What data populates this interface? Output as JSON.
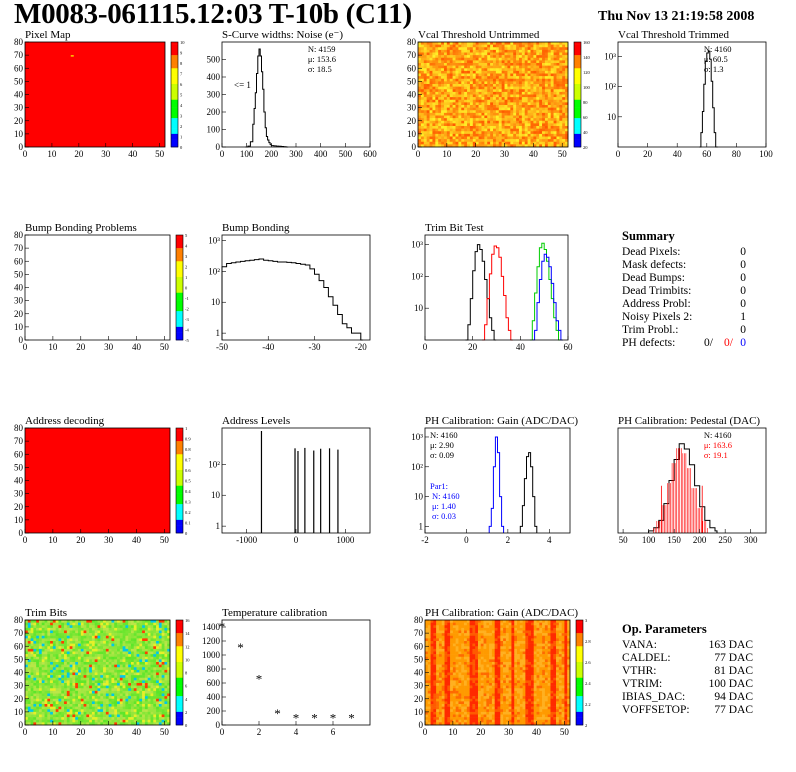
{
  "header": {
    "title": "M0083-061115.12:03 T-10b (C11)",
    "date": "Thu Nov 13 21:19:58 2008"
  },
  "colors": {
    "black": "#000000",
    "red": "#ff0000",
    "green": "#00cc00",
    "blue": "#0000ff",
    "map_red": "#ff0000"
  },
  "chart_data": [
    {
      "id": "pixel-map",
      "type": "heatmap",
      "title": "Pixel Map",
      "xlim": [
        0,
        52
      ],
      "ylim": [
        0,
        80
      ],
      "xticks": [
        "0",
        "10",
        "20",
        "30",
        "40",
        "50"
      ],
      "yticks": [
        "0",
        "10",
        "20",
        "30",
        "40",
        "50",
        "60",
        "70",
        "80"
      ],
      "fill": "uniform-red",
      "zlim": [
        0,
        10
      ],
      "zticks": [
        "10",
        "9",
        "8",
        "7",
        "6",
        "5",
        "4",
        "3",
        "2",
        "1",
        "0"
      ]
    },
    {
      "id": "scurve-widths",
      "type": "line",
      "title": "S-Curve widths: Noise (e⁻)",
      "xlim": [
        0,
        600
      ],
      "xticks": [
        "0",
        "100",
        "200",
        "300",
        "400",
        "500",
        "600"
      ],
      "ylim": [
        0,
        600
      ],
      "yticks": [
        "0",
        "100",
        "200",
        "300",
        "400",
        "500"
      ],
      "stats": [
        {
          "label": "N:",
          "value": "4159"
        },
        {
          "label": "μ:",
          "value": "153.6"
        },
        {
          "label": "σ:",
          "value": "18.5"
        }
      ],
      "annotation": "<= 1",
      "series": [
        {
          "color": "#000000",
          "x": [
            95,
            105,
            115,
            125,
            130,
            135,
            140,
            145,
            150,
            155,
            160,
            165,
            170,
            175,
            180,
            185,
            190,
            195,
            200,
            210,
            220,
            230,
            240,
            250,
            260
          ],
          "y": [
            0,
            5,
            30,
            130,
            220,
            310,
            420,
            520,
            560,
            520,
            430,
            330,
            200,
            110,
            60,
            40,
            25,
            15,
            8,
            6,
            5,
            4,
            3,
            2,
            0
          ]
        }
      ]
    },
    {
      "id": "vcal-untrimmed",
      "type": "heatmap",
      "title": "Vcal Threshold Untrimmed",
      "xlim": [
        0,
        52
      ],
      "ylim": [
        0,
        80
      ],
      "xticks": [
        "0",
        "10",
        "20",
        "30",
        "40",
        "50"
      ],
      "yticks": [
        "0",
        "10",
        "20",
        "30",
        "40",
        "50",
        "60",
        "70",
        "80"
      ],
      "fill": "noise-orange",
      "zlim": [
        0,
        160
      ],
      "zticks": [
        "160",
        "140",
        "120",
        "100",
        "80",
        "60",
        "40",
        "20"
      ]
    },
    {
      "id": "vcal-trimmed",
      "type": "line",
      "title": "Vcal Threshold Trimmed",
      "log_y": true,
      "xlim": [
        0,
        100
      ],
      "xticks": [
        "0",
        "20",
        "40",
        "60",
        "80",
        "100"
      ],
      "ylim": [
        1,
        3000
      ],
      "yticks": [
        {
          "v": 10,
          "t": "10"
        },
        {
          "v": 100,
          "t": "10²"
        },
        {
          "v": 1000,
          "t": "10³"
        }
      ],
      "stats": [
        {
          "label": "N:",
          "value": "4160"
        },
        {
          "label": "μ:",
          "value": "60.5"
        },
        {
          "label": "σ:",
          "value": "1.3"
        }
      ],
      "series": [
        {
          "color": "#000000",
          "x": [
            55,
            56,
            57,
            58,
            59,
            60,
            61,
            62,
            63,
            64,
            65,
            66
          ],
          "y": [
            1,
            3,
            15,
            120,
            700,
            1300,
            1500,
            800,
            150,
            20,
            3,
            1
          ]
        }
      ]
    },
    {
      "id": "bump-problems",
      "type": "heatmap",
      "title": "Bump Bonding Problems",
      "xlim": [
        0,
        52
      ],
      "ylim": [
        0,
        80
      ],
      "xticks": [
        "0",
        "10",
        "20",
        "30",
        "40",
        "50"
      ],
      "yticks": [
        "0",
        "10",
        "20",
        "30",
        "40",
        "50",
        "60",
        "70",
        "80"
      ],
      "fill": "empty",
      "zlim": [
        -5,
        5
      ],
      "zticks": [
        "5",
        "4",
        "3",
        "2",
        "1",
        "0",
        "-1",
        "-2",
        "-3",
        "-4",
        "-5"
      ]
    },
    {
      "id": "bump-bonding",
      "type": "line",
      "title": "Bump Bonding",
      "log_y": true,
      "xlim": [
        -50,
        -18
      ],
      "xticks": [
        "-50",
        "-40",
        "-30",
        "-20"
      ],
      "ylim": [
        0.6,
        1500
      ],
      "yticks": [
        {
          "v": 1,
          "t": "1"
        },
        {
          "v": 10,
          "t": "10"
        },
        {
          "v": 100,
          "t": "10²"
        },
        {
          "v": 1000,
          "t": "10³"
        }
      ],
      "series": [
        {
          "color": "#000000",
          "x": [
            -50,
            -49,
            -48,
            -47,
            -46,
            -45,
            -44,
            -43,
            -42,
            -41,
            -40,
            -39,
            -38,
            -37,
            -36,
            -35,
            -34,
            -33,
            -32,
            -31,
            -30,
            -29,
            -28,
            -27,
            -26,
            -25,
            -24,
            -23,
            -22,
            -21,
            -20
          ],
          "y": [
            140,
            180,
            190,
            200,
            210,
            220,
            230,
            240,
            250,
            230,
            220,
            210,
            200,
            200,
            195,
            190,
            180,
            170,
            160,
            120,
            80,
            50,
            30,
            15,
            8,
            4,
            2,
            1.5,
            1,
            1,
            0.6
          ]
        }
      ]
    },
    {
      "id": "trim-bit-test",
      "type": "line",
      "title": "Trim Bit Test",
      "log_y": true,
      "xlim": [
        0,
        60
      ],
      "xticks": [
        "0",
        "20",
        "40",
        "60"
      ],
      "ylim": [
        1,
        2000
      ],
      "yticks": [
        {
          "v": 10,
          "t": "10"
        },
        {
          "v": 100,
          "t": "10²"
        },
        {
          "v": 1000,
          "t": "10³"
        }
      ],
      "series": [
        {
          "color": "#000000",
          "x": [
            17,
            18,
            19,
            20,
            21,
            22,
            23,
            24,
            25,
            26,
            27,
            28,
            29
          ],
          "y": [
            1,
            3,
            20,
            150,
            600,
            1000,
            700,
            300,
            80,
            20,
            5,
            2,
            1
          ]
        },
        {
          "color": "#ff0000",
          "x": [
            24,
            25,
            26,
            27,
            28,
            29,
            30,
            31,
            32,
            33,
            34,
            35,
            36
          ],
          "y": [
            1,
            3,
            20,
            120,
            500,
            900,
            800,
            400,
            100,
            25,
            5,
            2,
            1
          ]
        },
        {
          "color": "#00cc00",
          "x": [
            44,
            45,
            46,
            47,
            48,
            49,
            50,
            51,
            52,
            53,
            54,
            55,
            56
          ],
          "y": [
            1,
            4,
            30,
            200,
            800,
            1100,
            700,
            300,
            80,
            20,
            5,
            2,
            1
          ]
        },
        {
          "color": "#0000ff",
          "x": [
            45,
            46,
            47,
            48,
            49,
            50,
            51,
            52,
            53,
            54,
            55,
            56,
            57
          ],
          "y": [
            1,
            2,
            15,
            80,
            300,
            500,
            400,
            200,
            60,
            15,
            4,
            2,
            1
          ]
        }
      ]
    },
    {
      "id": "address-decoding",
      "type": "heatmap",
      "title": "Address decoding",
      "xlim": [
        0,
        52
      ],
      "ylim": [
        0,
        80
      ],
      "xticks": [
        "0",
        "10",
        "20",
        "30",
        "40",
        "50"
      ],
      "yticks": [
        "0",
        "10",
        "20",
        "30",
        "40",
        "50",
        "60",
        "70",
        "80"
      ],
      "fill": "uniform-red",
      "zlim": [
        0,
        1
      ],
      "zticks": [
        "1",
        "0.9",
        "0.8",
        "0.7",
        "0.6",
        "0.5",
        "0.4",
        "0.3",
        "0.2",
        "0.1",
        "0"
      ]
    },
    {
      "id": "address-levels",
      "type": "bar",
      "title": "Address Levels",
      "log_y": true,
      "xlim": [
        -1500,
        1500
      ],
      "xticks": [
        "-1000",
        "0",
        "1000"
      ],
      "ylim": [
        0.6,
        1500
      ],
      "yticks": [
        {
          "v": 1,
          "t": "1"
        },
        {
          "v": 10,
          "t": "10"
        },
        {
          "v": 100,
          "t": "10²"
        }
      ],
      "series": [
        {
          "color": "#000000",
          "x": [
            -700,
            -20,
            40,
            180,
            360,
            500,
            680,
            850
          ],
          "y": [
            1200,
            330,
            270,
            340,
            280,
            320,
            330,
            300
          ]
        }
      ]
    },
    {
      "id": "ph-gain",
      "type": "line",
      "title": "PH Calibration: Gain (ADC/DAC)",
      "log_y": true,
      "xlim": [
        -2,
        5
      ],
      "xticks": [
        "-2",
        "0",
        "2",
        "4"
      ],
      "ylim": [
        0.6,
        2000
      ],
      "yticks": [
        {
          "v": 1,
          "t": "1"
        },
        {
          "v": 10,
          "t": "10"
        },
        {
          "v": 100,
          "t": "10²"
        },
        {
          "v": 1000,
          "t": "10³"
        }
      ],
      "stats": [
        {
          "label": "N:",
          "value": "4160"
        },
        {
          "label": "μ:",
          "value": "2.90"
        },
        {
          "label": "σ:",
          "value": "0.09"
        }
      ],
      "stats2_title": "Par1:",
      "stats2": [
        {
          "label": "N:",
          "value": "4160"
        },
        {
          "label": "μ:",
          "value": "1.40"
        },
        {
          "label": "σ:",
          "value": "0.03"
        }
      ],
      "series": [
        {
          "color": "#000000",
          "x": [
            2.6,
            2.7,
            2.8,
            2.9,
            3.0,
            3.1,
            3.2,
            3.3
          ],
          "y": [
            1,
            5,
            40,
            220,
            300,
            100,
            10,
            1
          ]
        },
        {
          "color": "#0000ff",
          "x": [
            1.1,
            1.2,
            1.3,
            1.4,
            1.5,
            1.6,
            1.7
          ],
          "y": [
            1,
            4,
            100,
            1000,
            300,
            10,
            1
          ]
        }
      ]
    },
    {
      "id": "ph-pedestal",
      "type": "line",
      "title": "PH Calibration: Pedestal (DAC)",
      "xlim": [
        40,
        330
      ],
      "xticks": [
        "50",
        "100",
        "150",
        "200",
        "250",
        "300"
      ],
      "ylim": [
        0,
        100
      ],
      "yticks": [],
      "stats": [
        {
          "label": "N:",
          "value": "4160"
        },
        {
          "label": "μ:",
          "value": "163.6"
        },
        {
          "label": "σ:",
          "value": "19.1"
        }
      ],
      "series": [
        {
          "color": "#000000",
          "x": [
            100,
            110,
            120,
            130,
            140,
            150,
            160,
            170,
            180,
            190,
            200,
            210,
            220,
            230
          ],
          "y": [
            2,
            5,
            12,
            28,
            50,
            70,
            85,
            80,
            65,
            45,
            25,
            12,
            5,
            2
          ]
        }
      ]
    },
    {
      "id": "trim-bits",
      "type": "heatmap",
      "title": "Trim Bits",
      "xlim": [
        0,
        52
      ],
      "ylim": [
        0,
        80
      ],
      "xticks": [
        "0",
        "10",
        "20",
        "30",
        "40",
        "50"
      ],
      "yticks": [
        "0",
        "10",
        "20",
        "30",
        "40",
        "50",
        "60",
        "70",
        "80"
      ],
      "fill": "noise-green",
      "zlim": [
        0,
        16
      ],
      "zticks": [
        "16",
        "14",
        "12",
        "10",
        "8",
        "6",
        "4",
        "2",
        "0"
      ]
    },
    {
      "id": "temperature-calibration",
      "type": "scatter",
      "title": "Temperature calibration",
      "xlim": [
        0,
        8
      ],
      "xticks": [
        "0",
        "2",
        "4",
        "6"
      ],
      "ylim": [
        0,
        1500
      ],
      "yticks": [
        "0",
        "200",
        "400",
        "600",
        "800",
        "1000",
        "1200",
        "1400"
      ],
      "series": [
        {
          "color": "#000000",
          "x": [
            0,
            1,
            2,
            3,
            4,
            5,
            6,
            7
          ],
          "y": [
            1400,
            1100,
            650,
            160,
            90,
            90,
            90,
            90
          ]
        }
      ]
    },
    {
      "id": "ph-gain-map",
      "type": "heatmap",
      "title": "PH Calibration: Gain (ADC/DAC)",
      "xlim": [
        0,
        52
      ],
      "ylim": [
        0,
        80
      ],
      "xticks": [
        "0",
        "10",
        "20",
        "30",
        "40",
        "50"
      ],
      "yticks": [
        "0",
        "10",
        "20",
        "30",
        "40",
        "50",
        "60",
        "70",
        "80"
      ],
      "fill": "column-stripes",
      "zlim": [
        2,
        3
      ],
      "zticks": [
        "3",
        "2.8",
        "2.6",
        "2.4",
        "2.2",
        "2"
      ]
    }
  ],
  "summary": {
    "title": "Summary",
    "rows": [
      {
        "label": "Dead Pixels:",
        "value": "0"
      },
      {
        "label": "Mask defects:",
        "value": "0"
      },
      {
        "label": "Dead Bumps:",
        "value": "0"
      },
      {
        "label": "Dead Trimbits:",
        "value": "0"
      },
      {
        "label": "Address Probl:",
        "value": "0"
      },
      {
        "label": "Noisy Pixels 2:",
        "value": "1"
      },
      {
        "label": "Trim Probl.:",
        "value": "0"
      }
    ],
    "ph_label": "PH defects:",
    "ph_values": [
      "0/",
      "0/",
      "0"
    ]
  },
  "op_params": {
    "title": "Op. Parameters",
    "rows": [
      {
        "label": "VANA:",
        "value": "163 DAC"
      },
      {
        "label": "CALDEL:",
        "value": "77 DAC"
      },
      {
        "label": "VTHR:",
        "value": "81 DAC"
      },
      {
        "label": "VTRIM:",
        "value": "100 DAC"
      },
      {
        "label": "IBIAS_DAC:",
        "value": "94 DAC"
      },
      {
        "label": "VOFFSETOP:",
        "value": "77 DAC"
      }
    ]
  }
}
